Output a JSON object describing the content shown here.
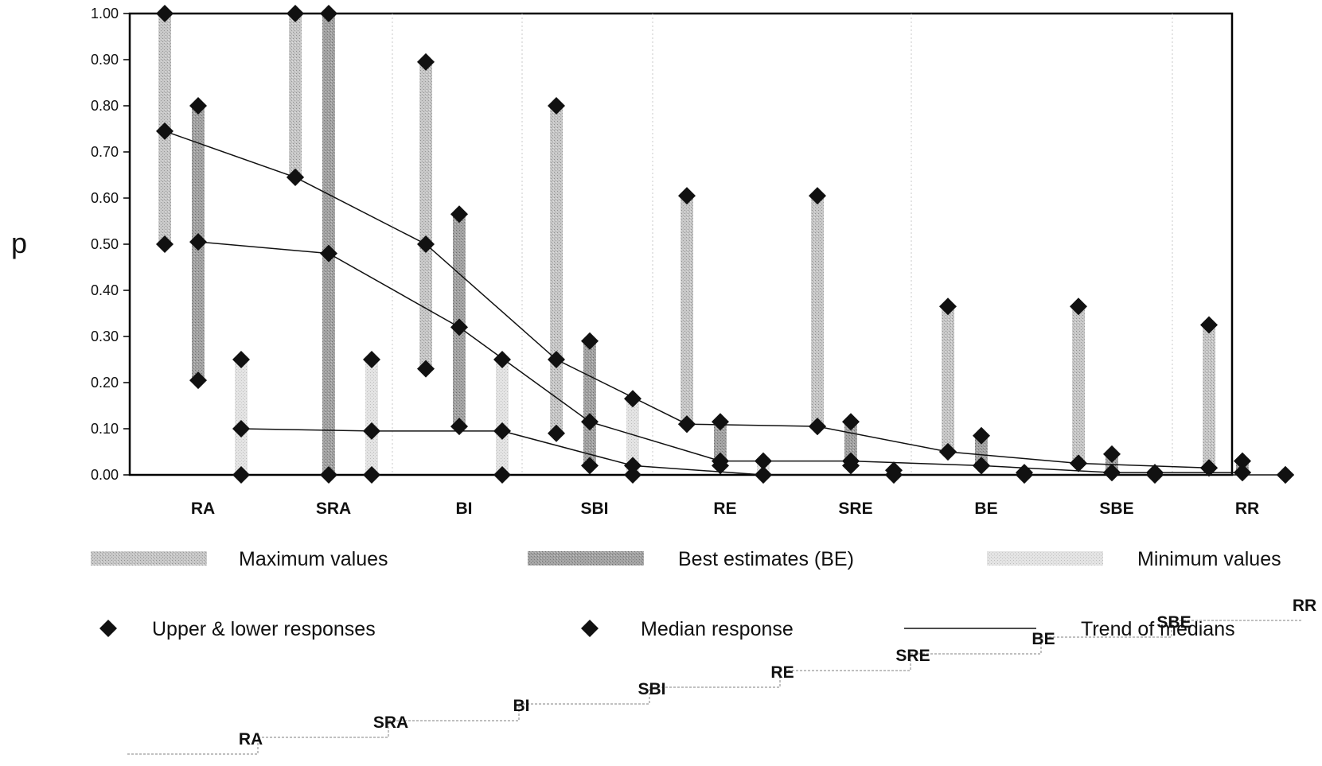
{
  "chart_data": {
    "type": "range",
    "ylabel": "p",
    "ylim": [
      0,
      1
    ],
    "yticks": [
      "0.00",
      "0.10",
      "0.20",
      "0.30",
      "0.40",
      "0.50",
      "0.60",
      "0.70",
      "0.80",
      "0.90",
      "1.00"
    ],
    "categories": [
      "RA",
      "SRA",
      "BI",
      "SBI",
      "RE",
      "SRE",
      "BE",
      "SBE",
      "RR"
    ],
    "series": [
      {
        "name": "Maximum values",
        "ranges": [
          [
            0.5,
            1.0
          ],
          [
            0.645,
            1.0
          ],
          [
            0.23,
            0.895
          ],
          [
            0.09,
            0.8
          ],
          [
            0.11,
            0.605
          ],
          [
            0.105,
            0.605
          ],
          [
            0.05,
            0.365
          ],
          [
            0.025,
            0.365
          ],
          [
            0.015,
            0.325
          ]
        ],
        "medians": [
          0.745,
          0.645,
          0.5,
          0.25,
          0.11,
          0.105,
          0.05,
          0.025,
          0.015
        ]
      },
      {
        "name": "Best estimates (BE)",
        "ranges": [
          [
            0.205,
            0.8
          ],
          [
            0.0,
            1.0
          ],
          [
            0.105,
            0.565
          ],
          [
            0.02,
            0.29
          ],
          [
            0.02,
            0.115
          ],
          [
            0.02,
            0.115
          ],
          [
            0.02,
            0.085
          ],
          [
            0.005,
            0.045
          ],
          [
            0.005,
            0.03
          ]
        ],
        "medians": [
          0.505,
          0.48,
          0.32,
          0.115,
          0.03,
          0.03,
          0.02,
          0.005,
          0.005
        ]
      },
      {
        "name": "Minimum values",
        "ranges": [
          [
            0.0,
            0.25
          ],
          [
            0.0,
            0.25
          ],
          [
            0.0,
            0.25
          ],
          [
            0.0,
            0.165
          ],
          [
            0.0,
            0.03
          ],
          [
            0.0,
            0.01
          ],
          [
            0.0,
            0.005
          ],
          [
            0.0,
            0.005
          ],
          [
            0.0,
            0.0
          ]
        ],
        "medians": [
          0.1,
          0.095,
          0.095,
          0.02,
          0.0,
          0.0,
          0.0,
          0.0,
          0.0
        ]
      }
    ],
    "legend": {
      "maximum": "Maximum values",
      "best": "Best estimates (BE)",
      "minimum": "Minimum values",
      "upper_lower": "Upper & lower responses",
      "median": "Median response",
      "trend": "Trend of medians"
    },
    "step_labels": [
      "RA",
      "SRA",
      "BI",
      "SBI",
      "RE",
      "SRE",
      "BE",
      "SBE",
      "RR"
    ]
  }
}
